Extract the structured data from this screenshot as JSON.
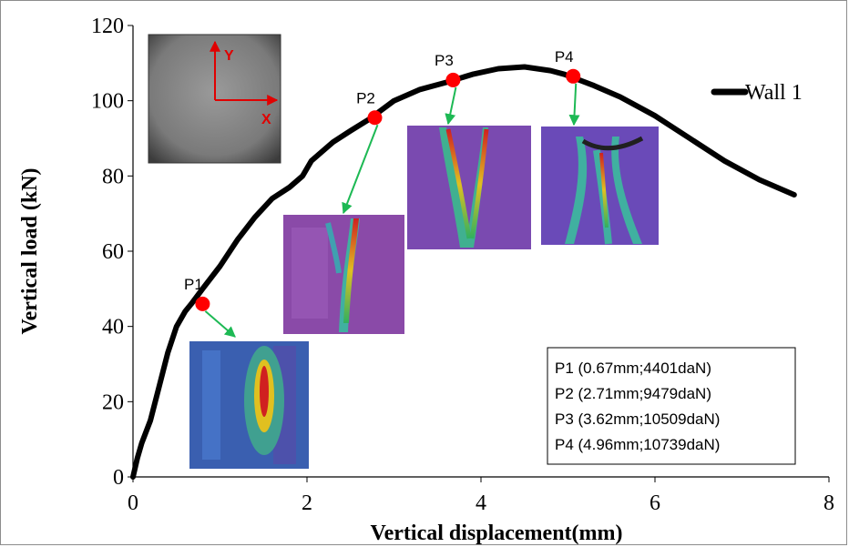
{
  "chart_data": {
    "type": "line",
    "title": "",
    "xlabel": "Vertical displacement(mm)",
    "ylabel": "Vertical load (kN)",
    "xlim": [
      0,
      8
    ],
    "ylim": [
      0,
      120
    ],
    "x_ticks": [
      "0",
      "2",
      "4",
      "6",
      "8"
    ],
    "y_ticks": [
      "0",
      "20",
      "40",
      "60",
      "80",
      "100",
      "120"
    ],
    "grid": false,
    "legend_position": "top-right",
    "series": [
      {
        "name": "Wall 1",
        "color": "#000000",
        "x": [
          0,
          0.05,
          0.1,
          0.2,
          0.3,
          0.4,
          0.5,
          0.6,
          0.67,
          0.8,
          1.0,
          1.2,
          1.4,
          1.6,
          1.8,
          1.95,
          2.05,
          2.15,
          2.3,
          2.5,
          2.71,
          3.0,
          3.3,
          3.62,
          3.9,
          4.2,
          4.5,
          4.8,
          4.96,
          5.3,
          5.6,
          6.0,
          6.4,
          6.8,
          7.2,
          7.6
        ],
        "y": [
          0,
          5,
          9,
          15,
          24,
          33,
          40,
          44,
          46,
          50,
          56,
          63,
          69,
          74,
          77,
          80,
          84,
          86,
          89,
          92,
          95,
          100,
          103,
          105,
          107,
          108.5,
          109,
          108,
          107,
          104,
          101,
          96,
          90,
          84,
          79,
          75
        ]
      }
    ],
    "points": [
      {
        "label": "P1",
        "x": 0.8,
        "y": 46
      },
      {
        "label": "P2",
        "x": 2.78,
        "y": 95.5
      },
      {
        "label": "P3",
        "x": 3.68,
        "y": 105.5
      },
      {
        "label": "P4",
        "x": 5.06,
        "y": 106.5
      }
    ],
    "annotation_box": [
      "P1 (0.67mm;4401daN)",
      "P2 (2.71mm;9479daN)",
      "P3 (3.62mm;10509daN)",
      "P4 (4.96mm;10739daN)"
    ],
    "inset_image_labels": {
      "y": "Y",
      "x": "X"
    }
  },
  "colors": {
    "curve": "#000000",
    "points": "#ff0000",
    "arrows": "#1db954",
    "axis_arrows": "#e00000"
  }
}
